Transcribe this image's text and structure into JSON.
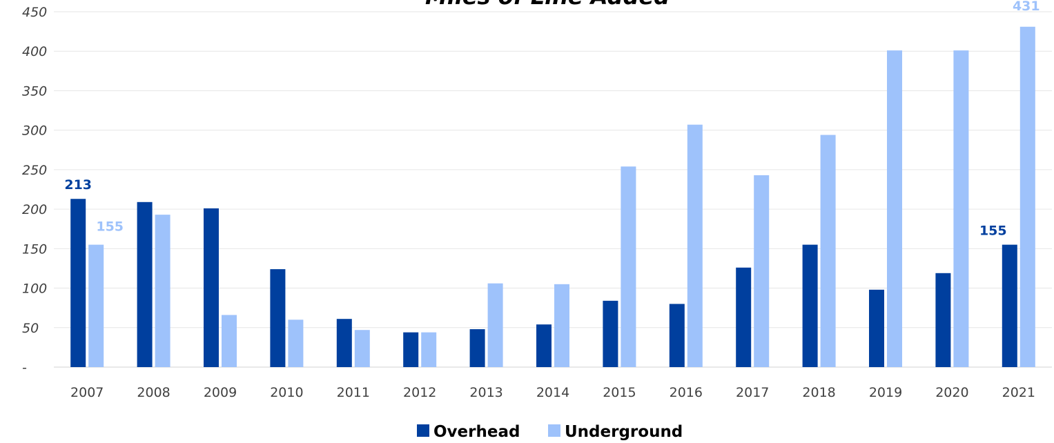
{
  "chart_data": {
    "type": "bar",
    "title": "Miles of Line Added",
    "categories": [
      "2007",
      "2008",
      "2009",
      "2010",
      "2011",
      "2012",
      "2013",
      "2014",
      "2015",
      "2016",
      "2017",
      "2018",
      "2019",
      "2020",
      "2021"
    ],
    "series": [
      {
        "name": "Overhead",
        "color": "#003f9e",
        "values": [
          213,
          209,
          201,
          124,
          61,
          44,
          48,
          54,
          84,
          80,
          126,
          155,
          98,
          119,
          155
        ]
      },
      {
        "name": "Underground",
        "color": "#9ec2fb",
        "values": [
          155,
          193,
          66,
          60,
          47,
          44,
          106,
          105,
          254,
          307,
          243,
          294,
          401,
          401,
          431
        ]
      }
    ],
    "y_ticks": [
      "-",
      "50",
      "100",
      "150",
      "200",
      "250",
      "300",
      "350",
      "400",
      "450"
    ],
    "ylim": [
      0,
      450
    ],
    "grid": true,
    "legend_position": "bottom",
    "data_labels": [
      {
        "series": 0,
        "index": 0,
        "text": "213"
      },
      {
        "series": 1,
        "index": 0,
        "text": "155"
      },
      {
        "series": 0,
        "index": 14,
        "text": "155"
      },
      {
        "series": 1,
        "index": 14,
        "text": "431"
      }
    ]
  }
}
